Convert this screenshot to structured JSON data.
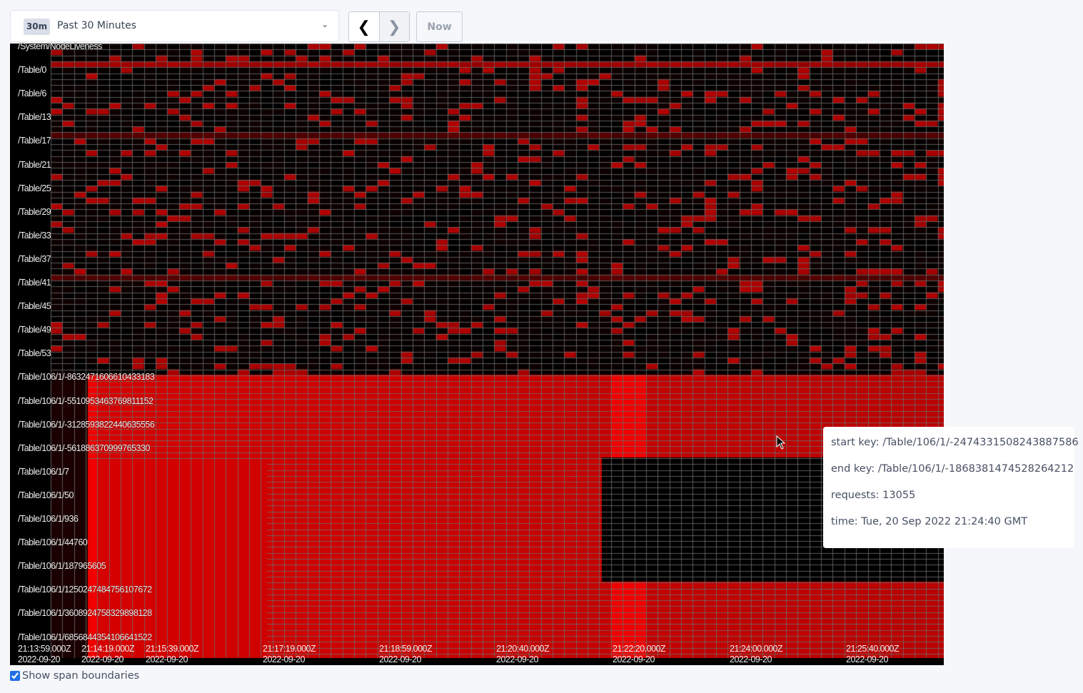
{
  "time_range": {
    "badge": "30m",
    "label": "Past 30 Minutes",
    "icon": "chevron-down-icon"
  },
  "nav": {
    "prev_icon": "chevron-left-icon",
    "next_icon": "chevron-right-icon",
    "now_label": "Now"
  },
  "heatmap": {
    "key_labels": [
      "/System/NodeLiveness",
      "/Table/0",
      "/Table/6",
      "/Table/13",
      "/Table/17",
      "/Table/21",
      "/Table/25",
      "/Table/29",
      "/Table/33",
      "/Table/37",
      "/Table/41",
      "/Table/45",
      "/Table/49",
      "/Table/53",
      "/Table/106/1/-8632471606610433183",
      "/Table/106/1/-5510953463769811152",
      "/Table/106/1/-3128593822440635556",
      "/Table/106/1/-561886370999765330",
      "/Table/106/1/7",
      "/Table/106/1/50",
      "/Table/106/1/936",
      "/Table/106/1/44760",
      "/Table/106/1/187965605",
      "/Table/106/1/1250247484756107672",
      "/Table/106/1/3608924758329898128",
      "/Table/106/1/6856844354106641522"
    ],
    "time_labels": [
      {
        "time": "21:13:59.000Z",
        "date": "2022-09-20"
      },
      {
        "time": "21:14:19.000Z",
        "date": "2022-09-20"
      },
      {
        "time": "21:15:39.000Z",
        "date": "2022-09-20"
      },
      {
        "time": "21:17:19.000Z",
        "date": "2022-09-20"
      },
      {
        "time": "21:18:59.000Z",
        "date": "2022-09-20"
      },
      {
        "time": "21:20:40.000Z",
        "date": "2022-09-20"
      },
      {
        "time": "21:22:20.000Z",
        "date": "2022-09-20"
      },
      {
        "time": "21:24:00.000Z",
        "date": "2022-09-20"
      },
      {
        "time": "21:25:40.000Z",
        "date": "2022-09-20"
      }
    ],
    "color_scale": [
      "#000000",
      "#ff0000"
    ]
  },
  "tooltip": {
    "start_key": "start key: /Table/106/1/-2474331508243887586",
    "end_key": "end key: /Table/106/1/-1868381474528264212",
    "requests": "requests: 13055",
    "time": "time: Tue, 20 Sep 2022 21:24:40 GMT"
  },
  "show_span_boundaries": {
    "label": "Show span boundaries",
    "checked": true
  }
}
